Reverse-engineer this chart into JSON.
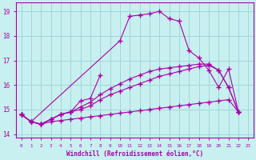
{
  "bg_color": "#c8f0f0",
  "grid_color": "#a0d8d8",
  "line_color": "#aa00aa",
  "xlabel": "Windchill (Refroidissement éolien,°C)",
  "ylim": [
    13.85,
    19.35
  ],
  "xlim": [
    -0.5,
    23.5
  ],
  "yticks": [
    14,
    15,
    16,
    17,
    18,
    19
  ],
  "line1_x": [
    0,
    1,
    2,
    3,
    4,
    5,
    6,
    7,
    8
  ],
  "line1_y": [
    14.8,
    14.5,
    14.4,
    14.6,
    14.8,
    14.9,
    15.35,
    15.45,
    16.4
  ],
  "line2_x": [
    0,
    1,
    2,
    3,
    4,
    5,
    6,
    7,
    8,
    9,
    10,
    11,
    12,
    13,
    14,
    15,
    16,
    17,
    18,
    19,
    20,
    21,
    22
  ],
  "line2_y": [
    14.8,
    14.5,
    14.4,
    14.5,
    14.55,
    14.6,
    14.65,
    14.7,
    14.75,
    14.8,
    14.85,
    14.9,
    14.95,
    15.0,
    15.05,
    15.1,
    15.15,
    15.2,
    15.25,
    15.3,
    15.35,
    15.4,
    14.9
  ],
  "line3_x": [
    0,
    1,
    2,
    3,
    4,
    5,
    6,
    7,
    8,
    9,
    10,
    11,
    12,
    13,
    14,
    15,
    16,
    17,
    18,
    19,
    20,
    21,
    22
  ],
  "line3_y": [
    14.8,
    14.5,
    14.4,
    14.6,
    14.8,
    14.9,
    15.0,
    15.15,
    15.4,
    15.6,
    15.75,
    15.9,
    16.05,
    16.2,
    16.35,
    16.45,
    16.55,
    16.65,
    16.75,
    16.8,
    16.6,
    15.9,
    14.9
  ],
  "line4_x": [
    0,
    1,
    2,
    3,
    4,
    5,
    6,
    7,
    8,
    9,
    10,
    11,
    12,
    13,
    14,
    15,
    16,
    17,
    18,
    19,
    20,
    21,
    22
  ],
  "line4_y": [
    14.8,
    14.5,
    14.4,
    14.6,
    14.8,
    14.9,
    15.1,
    15.3,
    15.6,
    15.85,
    16.05,
    16.25,
    16.4,
    16.55,
    16.65,
    16.7,
    16.75,
    16.8,
    16.85,
    16.85,
    16.6,
    15.9,
    14.9
  ],
  "line5_x": [
    0,
    1,
    10,
    11,
    12,
    13,
    14,
    15,
    16,
    17,
    18,
    19,
    20,
    21,
    22
  ],
  "line5_y": [
    14.8,
    14.5,
    17.8,
    18.8,
    18.85,
    18.9,
    19.0,
    18.7,
    18.6,
    17.4,
    17.1,
    16.6,
    15.9,
    16.65,
    14.9
  ]
}
